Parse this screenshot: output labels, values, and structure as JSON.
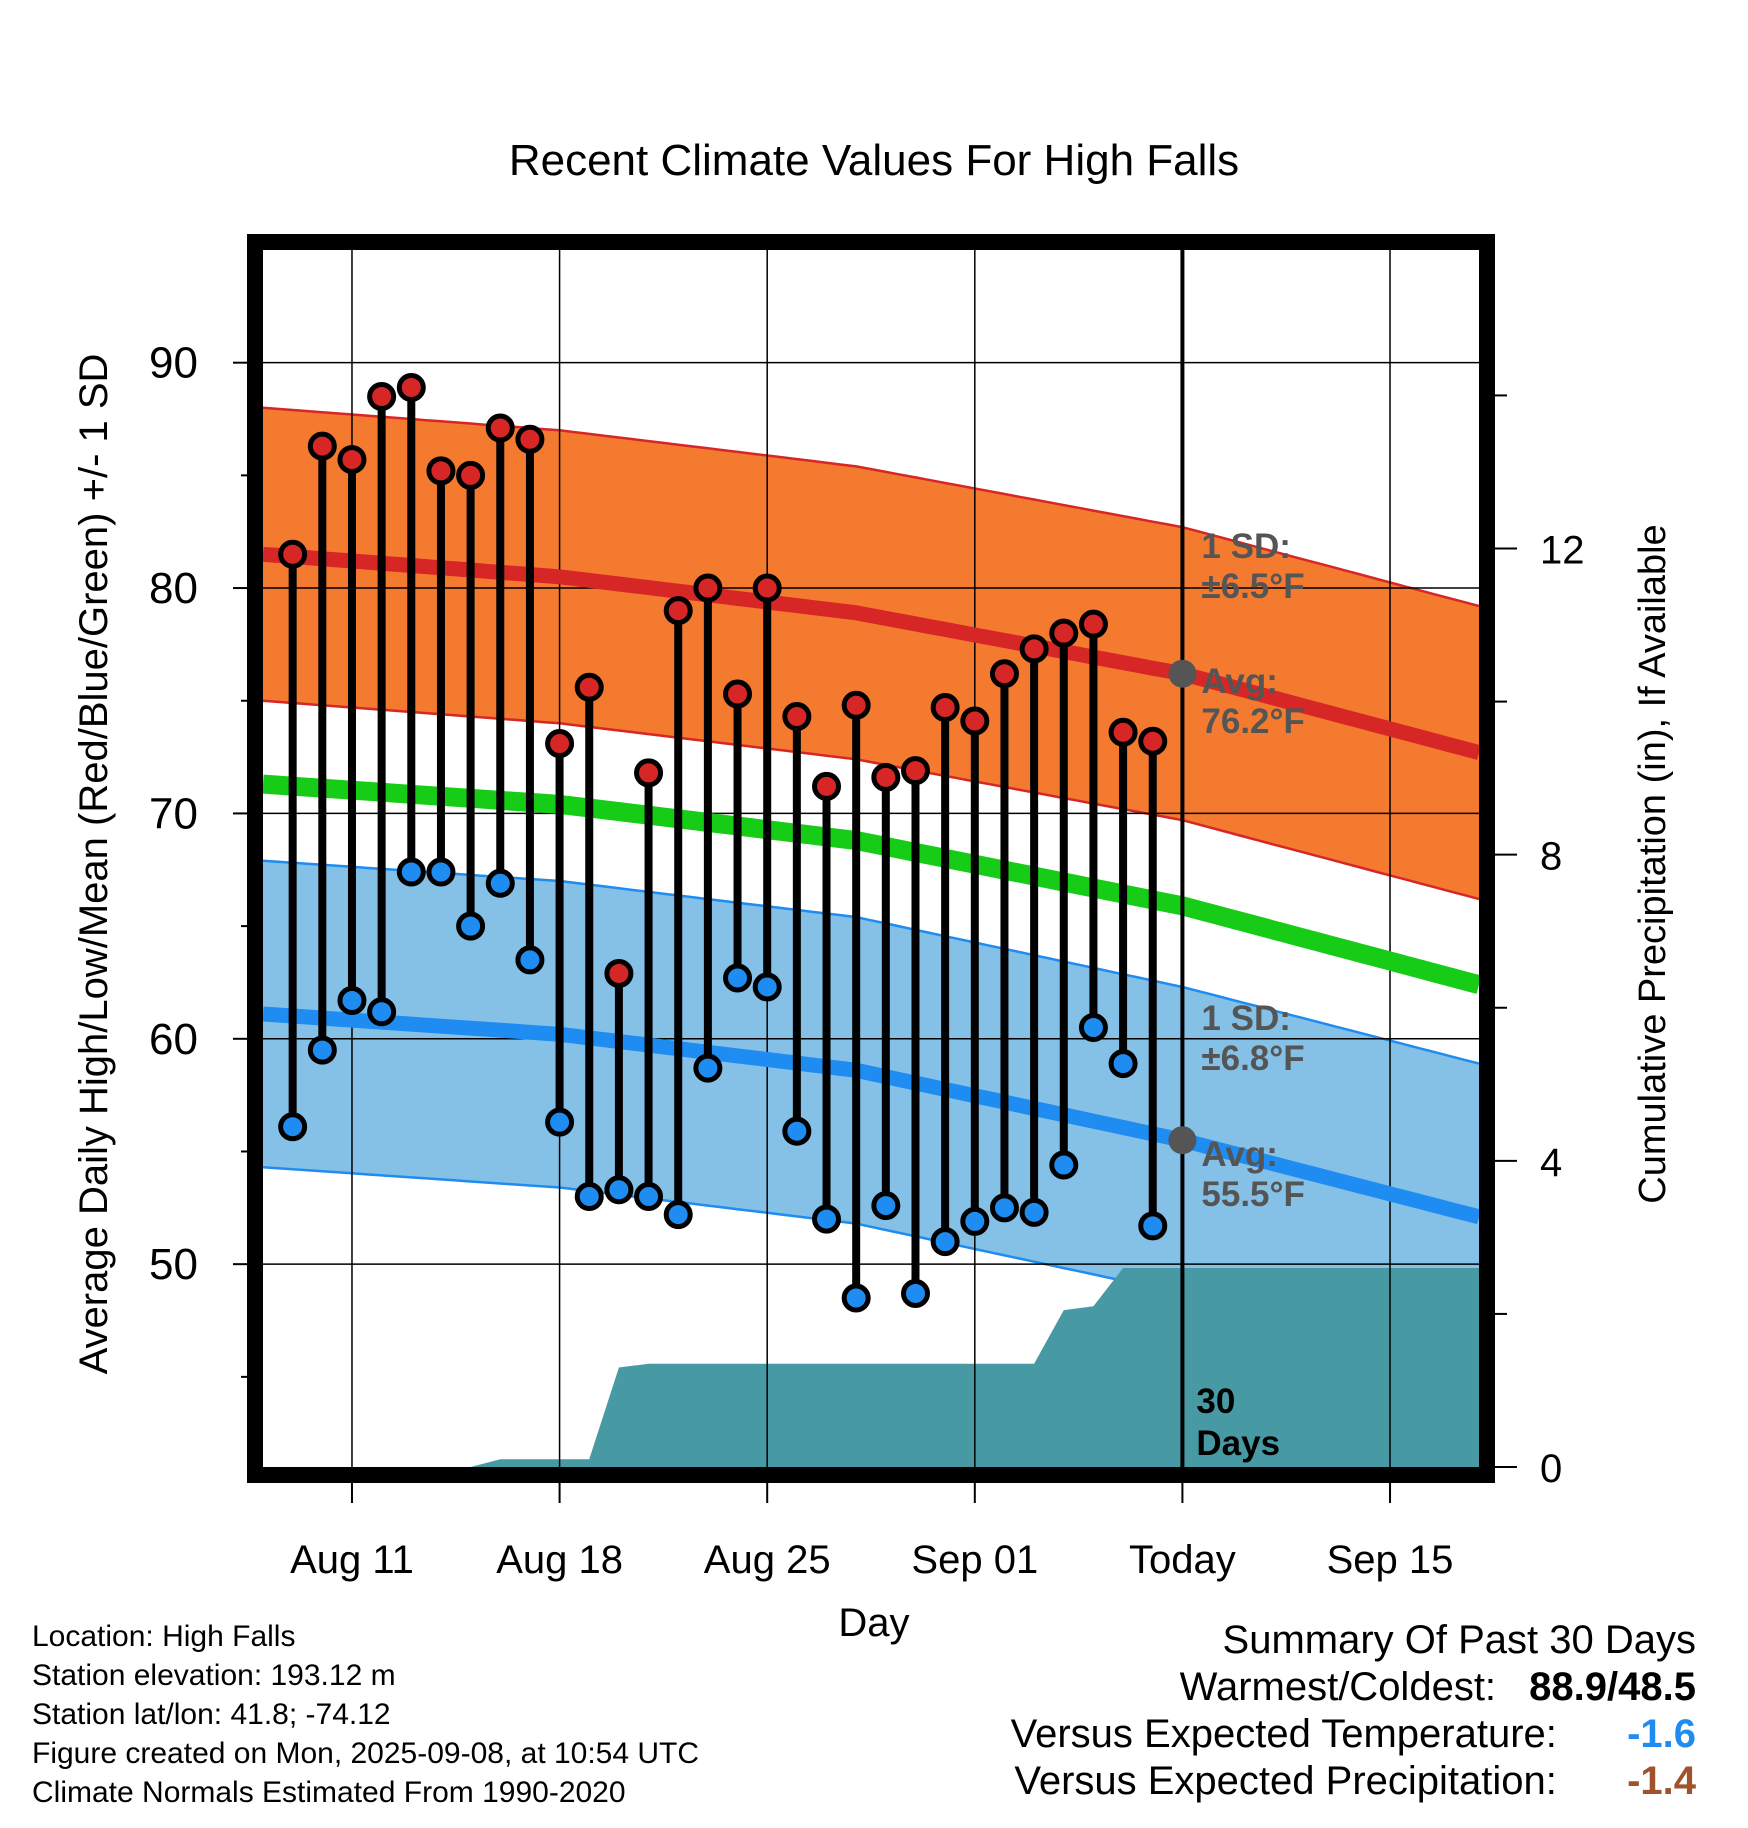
{
  "chart_data": {
    "type": "line",
    "title": "Recent Climate Values For High Falls",
    "xlabel": "Day",
    "ylabel": "Average Daily High/Low/Mean (Red/Blue/Green) +/- 1 SD",
    "y2label": "Cumulative Precipitation (in), If Available",
    "x_start_date": "2025-08-08",
    "x_end_date": "2025-09-18",
    "today_date": "2025-09-08",
    "x_ticks": [
      {
        "date": "2025-08-11",
        "label": "Aug 11"
      },
      {
        "date": "2025-08-18",
        "label": "Aug 18"
      },
      {
        "date": "2025-08-25",
        "label": "Aug 25"
      },
      {
        "date": "2025-09-01",
        "label": "Sep 01"
      },
      {
        "date": "2025-09-08",
        "label": "Today"
      },
      {
        "date": "2025-09-15",
        "label": "Sep 15"
      }
    ],
    "ylim": [
      41,
      95
    ],
    "y_ticks": [
      50,
      60,
      70,
      80,
      90
    ],
    "y2lim": [
      0,
      15.9
    ],
    "y2_ticks": [
      0,
      4,
      8,
      12
    ],
    "grid": true,
    "observed": {
      "dates": [
        "2025-08-09",
        "2025-08-10",
        "2025-08-11",
        "2025-08-12",
        "2025-08-13",
        "2025-08-14",
        "2025-08-15",
        "2025-08-16",
        "2025-08-17",
        "2025-08-18",
        "2025-08-19",
        "2025-08-20",
        "2025-08-21",
        "2025-08-22",
        "2025-08-23",
        "2025-08-24",
        "2025-08-25",
        "2025-08-26",
        "2025-08-27",
        "2025-08-28",
        "2025-08-29",
        "2025-08-30",
        "2025-08-31",
        "2025-09-01",
        "2025-09-02",
        "2025-09-03",
        "2025-09-04",
        "2025-09-05",
        "2025-09-06",
        "2025-09-07"
      ],
      "high": [
        81.5,
        86.3,
        85.7,
        88.5,
        88.9,
        85.2,
        85.0,
        87.1,
        86.6,
        73.1,
        75.6,
        62.9,
        71.8,
        79.0,
        80.0,
        75.3,
        80.0,
        74.3,
        71.2,
        74.8,
        71.6,
        71.9,
        74.7,
        74.1,
        76.2,
        77.3,
        78.0,
        78.4,
        73.6,
        73.2
      ],
      "low": [
        56.1,
        59.5,
        61.7,
        61.2,
        67.4,
        67.4,
        65.0,
        66.9,
        63.5,
        56.3,
        53.0,
        53.3,
        53.0,
        52.2,
        58.7,
        62.7,
        62.3,
        55.9,
        52.0,
        48.5,
        52.6,
        48.7,
        51.0,
        51.9,
        52.5,
        52.3,
        54.4,
        60.5,
        58.9,
        51.7
      ]
    },
    "normal_high": {
      "dates": [
        "2025-08-08",
        "2025-08-18",
        "2025-08-28",
        "2025-09-08",
        "2025-09-18"
      ],
      "mean": [
        81.5,
        80.5,
        78.9,
        76.2,
        72.7
      ],
      "sd": 6.5
    },
    "normal_low": {
      "dates": [
        "2025-08-08",
        "2025-08-18",
        "2025-08-28",
        "2025-09-08",
        "2025-09-18"
      ],
      "mean": [
        61.1,
        60.2,
        58.6,
        55.5,
        52.1
      ],
      "sd": 6.8
    },
    "normal_mean": {
      "dates": [
        "2025-08-08",
        "2025-08-18",
        "2025-08-28",
        "2025-09-08",
        "2025-09-18"
      ],
      "mean": [
        71.3,
        70.4,
        68.8,
        65.9,
        62.4
      ]
    },
    "cumulative_precip": {
      "dates": [
        "2025-08-08",
        "2025-08-15",
        "2025-08-16",
        "2025-08-19",
        "2025-08-20",
        "2025-08-21",
        "2025-09-02",
        "2025-09-03",
        "2025-09-04",
        "2025-09-05",
        "2025-09-06",
        "2025-09-18"
      ],
      "values": [
        0.0,
        0.0,
        0.1,
        0.1,
        1.3,
        1.35,
        1.35,
        1.35,
        2.05,
        2.1,
        2.6,
        2.6
      ]
    },
    "annotations": {
      "high_sd": [
        "1 SD:",
        "±6.5°F"
      ],
      "high_avg": [
        "Avg:",
        "76.2°F"
      ],
      "low_sd": [
        "1 SD:",
        "±6.8°F"
      ],
      "low_avg": [
        "Avg:",
        "55.5°F"
      ],
      "period": [
        "30",
        "Days"
      ]
    },
    "colors": {
      "high_band": "#f47a30",
      "high_line": "#d62626",
      "low_band": "#85c1e6",
      "low_line": "#1e8cf0",
      "mean_line": "#17cc17",
      "precip": "#479aa3",
      "high_dot": "#d62626",
      "low_dot": "#1e8cf0",
      "today_dot": "#555555",
      "annotation_text": "#555555"
    }
  },
  "info": {
    "location": "Location: High Falls",
    "elevation": "Station elevation: 193.12 m",
    "latlon": "Station lat/lon: 41.8; -74.12",
    "created": "Figure created on Mon, 2025-09-08, at 10:54 UTC",
    "normals": "Climate Normals Estimated From 1990-2020"
  },
  "summary": {
    "title": "Summary Of Past 30 Days",
    "warm_cold_label": "Warmest/Coldest:",
    "warm_cold_value": "88.9/48.5",
    "temp_label": "Versus Expected Temperature:",
    "temp_value": "-1.6",
    "temp_color": "#1e8cf0",
    "precip_label": "Versus Expected Precipitation:",
    "precip_value": "-1.4",
    "precip_color": "#a0522d"
  }
}
